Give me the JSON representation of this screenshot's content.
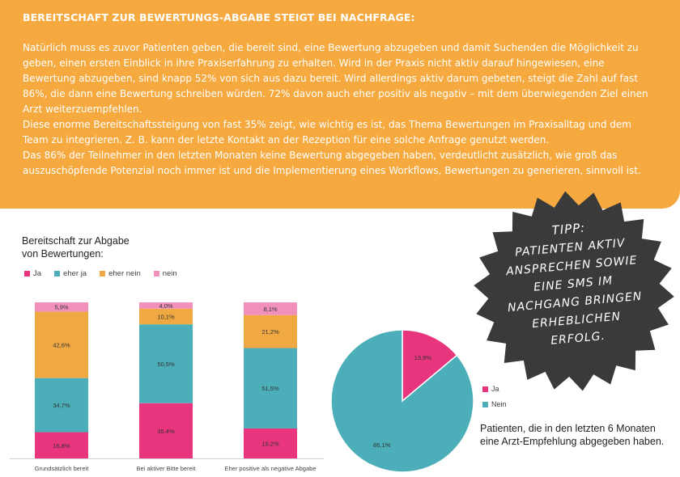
{
  "banner": {
    "title": "BEREITSCHAFT ZUR BEWERTUNGS-ABGABE STEIGT BEI NACHFRAGE:",
    "paragraph1": "Natürlich muss es zuvor Patienten geben, die bereit sind, eine Bewertung abzugeben und damit Suchenden die Möglichkeit zu geben, einen ersten Einblick in ihre Praxiserfahrung zu erhalten. Wird in der Praxis nicht aktiv darauf hingewiesen, eine Bewertung abzugeben, sind knapp 52% von sich aus dazu bereit. Wird allerdings aktiv darum gebeten, steigt die Zahl auf fast 86%, die dann eine Bewertung schreiben würden. 72% davon auch eher positiv als negativ – mit dem überwiegenden Ziel einen Arzt weiterzuempfehlen.",
    "paragraph2": "Diese enorme Bereitschaftssteigung von fast 35% zeigt, wie wichtig es ist, das Thema Bewertungen im Praxisalltag und dem Team zu integrieren. Z. B. kann der letzte Kontakt an der Rezeption für eine solche Anfrage genutzt werden.",
    "paragraph3": "Das 86% der Teilnehmer in den letzten Monaten keine Bewertung abgegeben haben, verdeutlicht zusätzlich, wie groß das auszuschöpfende Potenzial noch immer ist und die Implementierung eines Workflows, Bewertungen zu generieren, sinnvoll ist."
  },
  "tip": {
    "lines": [
      "TIPP:",
      "PATIENTEN AKTIV",
      "ANSPRECHEN SOWIE",
      "EINE SMS IM",
      "NACHGANG BRINGEN",
      "ERHEBLICHEN",
      "ERFOLG."
    ],
    "color": "#3a3a3a"
  },
  "chart_data": [
    {
      "type": "bar",
      "stacked": true,
      "title": "Bereitschaft zur Abgabe von Bewertungen:",
      "title_lines": [
        "Bereitschaft zur Abgabe",
        "von Bewertungen:"
      ],
      "categories": [
        "Grundsätzlich bereit",
        "Bei aktiver Bitte bereit",
        "Eher positive als negative Abgabe"
      ],
      "series": [
        {
          "name": "Ja",
          "color": "#e8357e",
          "values": [
            16.8,
            35.4,
            19.2
          ],
          "labels": [
            "16,8%",
            "35,4%",
            "19,2%"
          ]
        },
        {
          "name": "eher ja",
          "color": "#4baeb9",
          "values": [
            34.7,
            50.5,
            51.5
          ],
          "labels": [
            "34,7%",
            "50,5%",
            "51,5%"
          ]
        },
        {
          "name": "eher nein",
          "color": "#f0a842",
          "values": [
            42.6,
            10.1,
            21.2
          ],
          "labels": [
            "42,6%",
            "10,1%",
            "21,2%"
          ]
        },
        {
          "name": "nein",
          "color": "#f191bb",
          "values": [
            5.9,
            4.0,
            8.1
          ],
          "labels": [
            "5,9%",
            "4,0%",
            "8,1%"
          ]
        }
      ],
      "ylim": [
        0,
        100
      ],
      "legend": "top-left"
    },
    {
      "type": "pie",
      "slices": [
        {
          "name": "Ja",
          "value": 13.9,
          "label": "13,9%",
          "color": "#e8357e"
        },
        {
          "name": "Nein",
          "value": 86.1,
          "label": "86,1%",
          "color": "#4baeb9"
        }
      ],
      "caption": "Patienten, die in den letzten 6 Monaten eine Arzt-Empfehlung abgegeben haben.",
      "legend": "right"
    }
  ]
}
